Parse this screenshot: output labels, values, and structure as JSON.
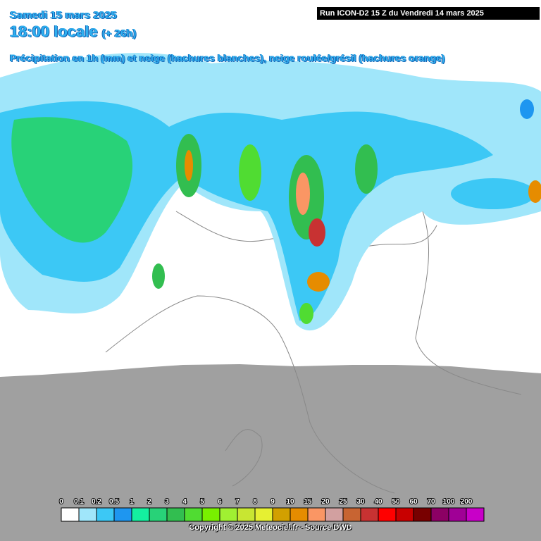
{
  "header": {
    "date": "Samedi 15 mars 2025",
    "time": "18:00 locale",
    "lead": "(+ 26h)",
    "description": "Précipitation en 1h (mm) et neige (hachures blanches), neige roulée/grésil (hachures orange)",
    "run": "Run ICON-D2 15 Z du Vendredi 14 mars 2025"
  },
  "legend": {
    "labels": [
      "0",
      "0.1",
      "0.2",
      "0.5",
      "1",
      "2",
      "3",
      "4",
      "5",
      "6",
      "7",
      "8",
      "9",
      "10",
      "15",
      "20",
      "25",
      "30",
      "40",
      "50",
      "60",
      "70",
      "100",
      "200"
    ],
    "colors": [
      "#ffffff",
      "#a0e6fa",
      "#3cc8f5",
      "#1e96f0",
      "#14f0a0",
      "#28d278",
      "#32be50",
      "#50dc32",
      "#78f000",
      "#a0f032",
      "#c8e632",
      "#e6f032",
      "#d2a000",
      "#e68c00",
      "#fa9664",
      "#d2a0a0",
      "#c86432",
      "#c83232",
      "#ff0000",
      "#c80000",
      "#780000",
      "#8c0064",
      "#a00096",
      "#c800c8"
    ]
  },
  "footer": {
    "copyright": "Copyright © 2025 Meteociel.fr - Source DWD"
  }
}
